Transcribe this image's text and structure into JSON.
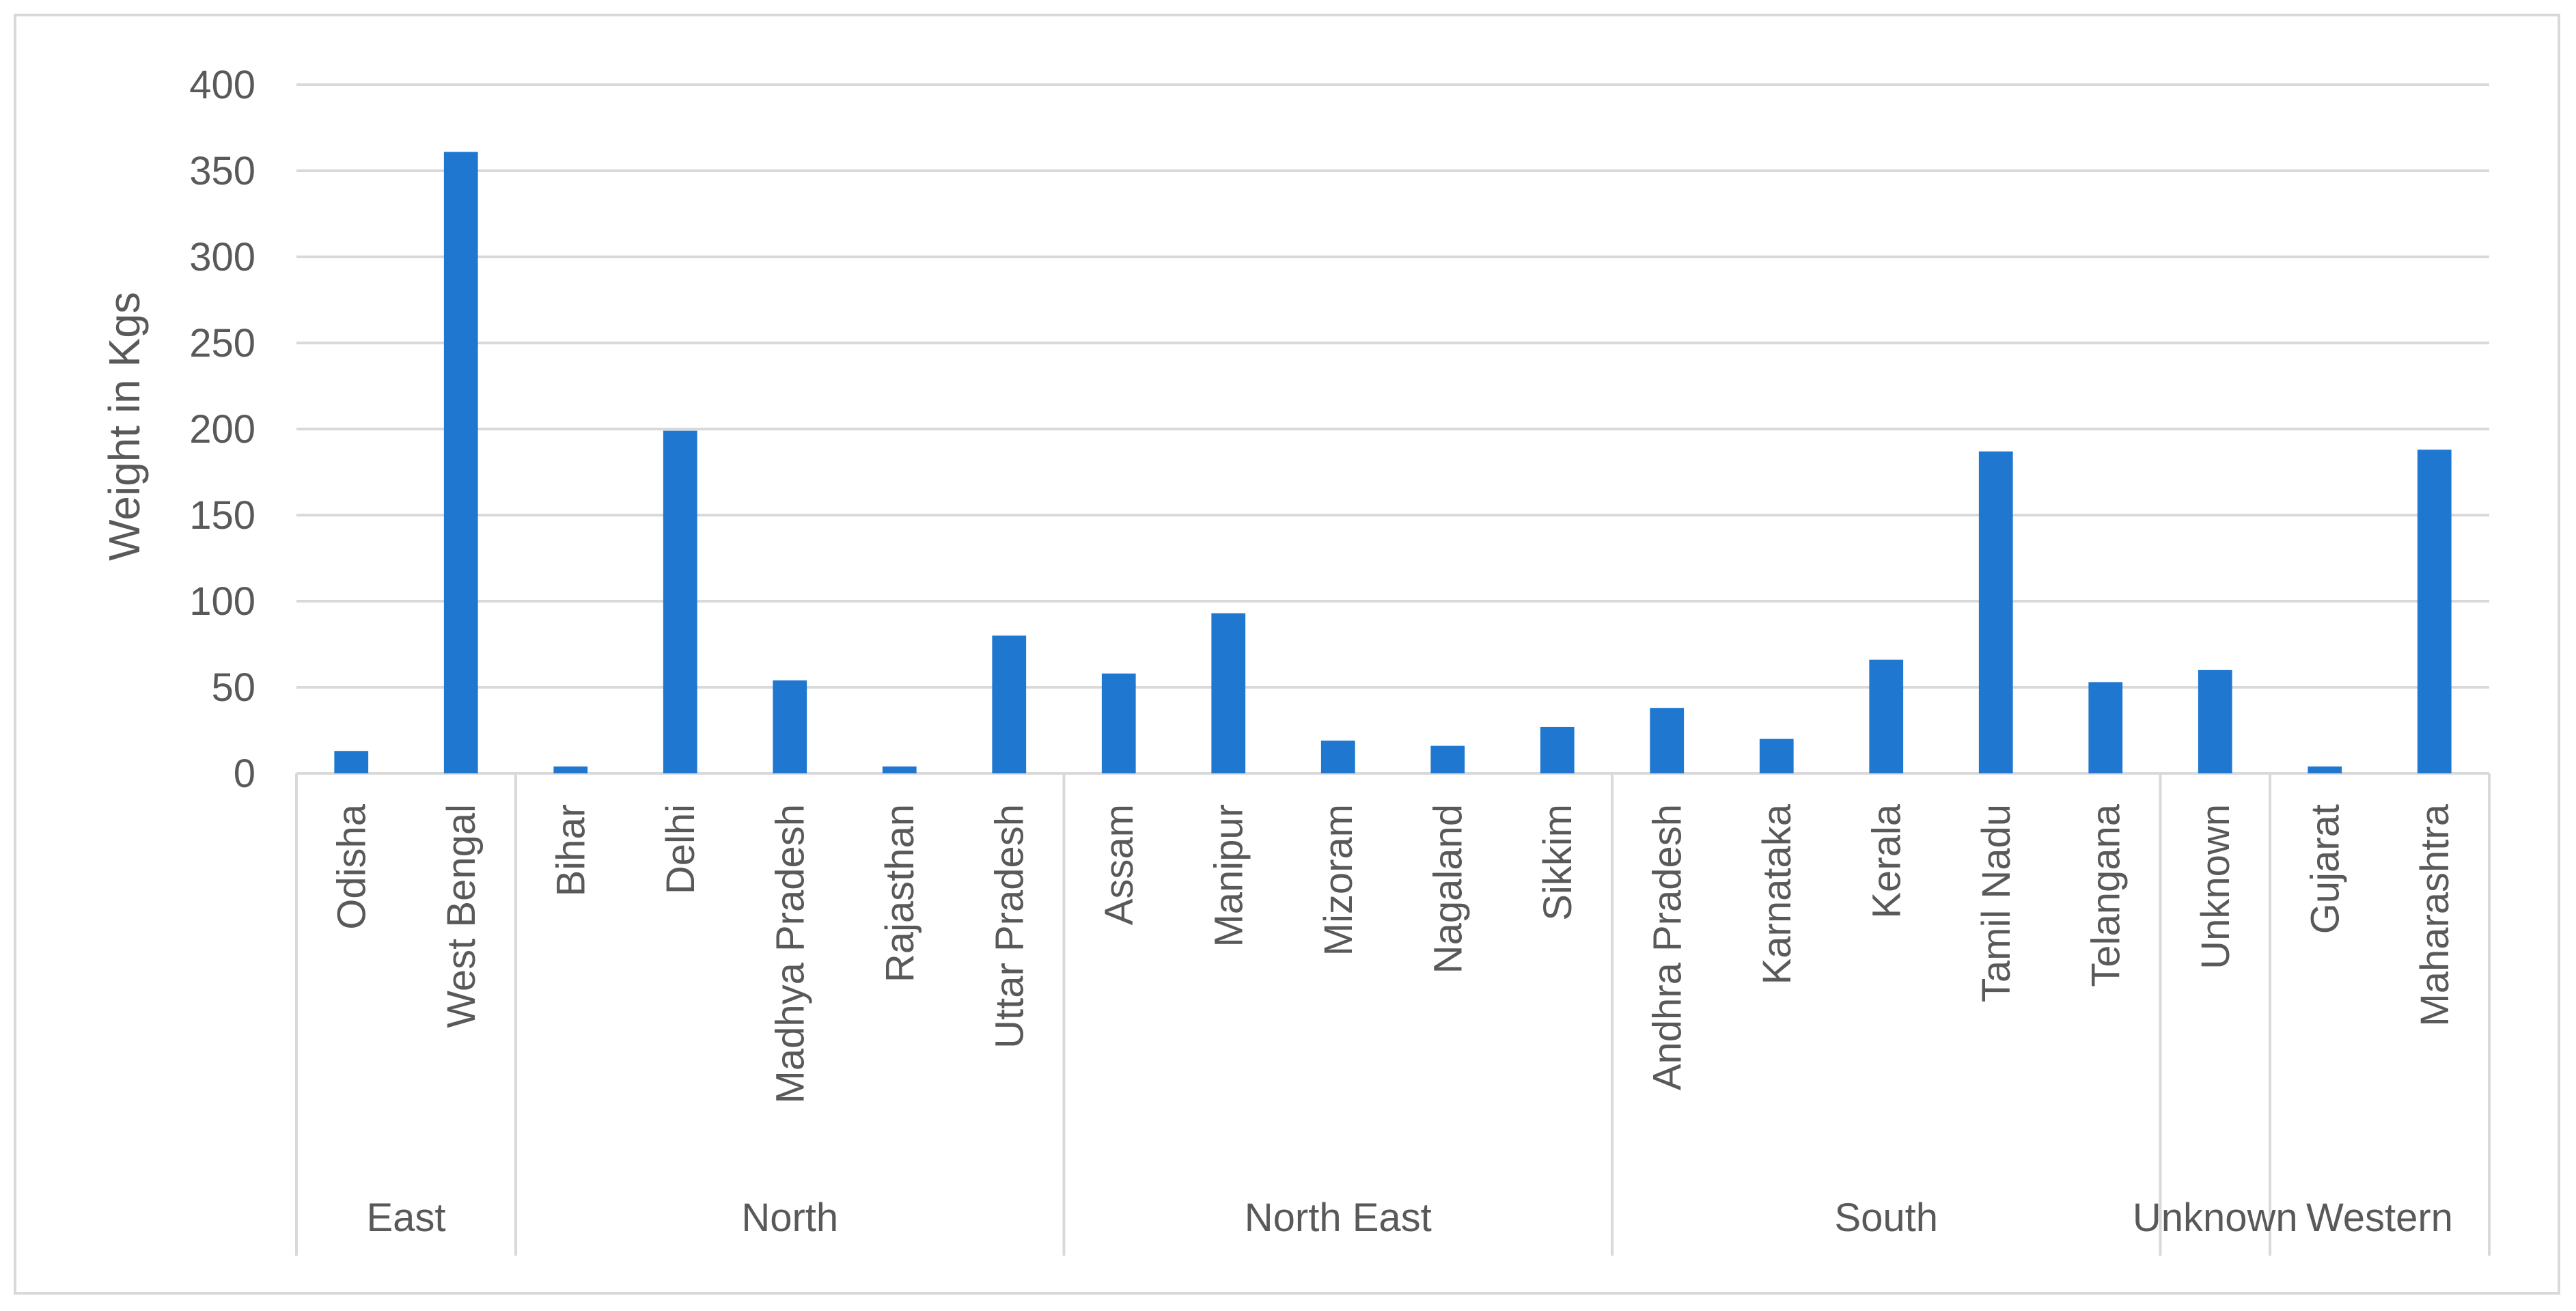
{
  "chart_data": {
    "type": "bar",
    "title": "",
    "xlabel": "",
    "ylabel": "Weight in Kgs",
    "ylim": [
      0,
      400
    ],
    "yticks": [
      0,
      50,
      100,
      150,
      200,
      250,
      300,
      350,
      400
    ],
    "grid": true,
    "legend": "none",
    "bar_color": "#1f77d0",
    "groups": [
      {
        "name": "East",
        "categories": [
          "Odisha",
          "West Bengal"
        ]
      },
      {
        "name": "North",
        "categories": [
          "Bihar",
          "Delhi",
          "Madhya Pradesh",
          "Rajasthan",
          "Uttar Pradesh"
        ]
      },
      {
        "name": "North East",
        "categories": [
          "Assam",
          "Manipur",
          "Mizoram",
          "Nagaland",
          "Sikkim"
        ]
      },
      {
        "name": "South",
        "categories": [
          "Andhra Pradesh",
          "Karnataka",
          "Kerala",
          "Tamil Nadu",
          "Telangana"
        ]
      },
      {
        "name": "Unknown",
        "categories": [
          "Unknown"
        ]
      },
      {
        "name": "Western",
        "categories": [
          "Gujarat",
          "Maharashtra"
        ]
      }
    ],
    "categories": [
      "Odisha",
      "West Bengal",
      "Bihar",
      "Delhi",
      "Madhya Pradesh",
      "Rajasthan",
      "Uttar Pradesh",
      "Assam",
      "Manipur",
      "Mizoram",
      "Nagaland",
      "Sikkim",
      "Andhra Pradesh",
      "Karnataka",
      "Kerala",
      "Tamil Nadu",
      "Telangana",
      "Unknown",
      "Gujarat",
      "Maharashtra"
    ],
    "values": [
      13,
      361,
      4,
      199,
      54,
      4,
      80,
      58,
      93,
      19,
      16,
      27,
      38,
      20,
      66,
      187,
      53,
      60,
      4,
      188
    ]
  }
}
